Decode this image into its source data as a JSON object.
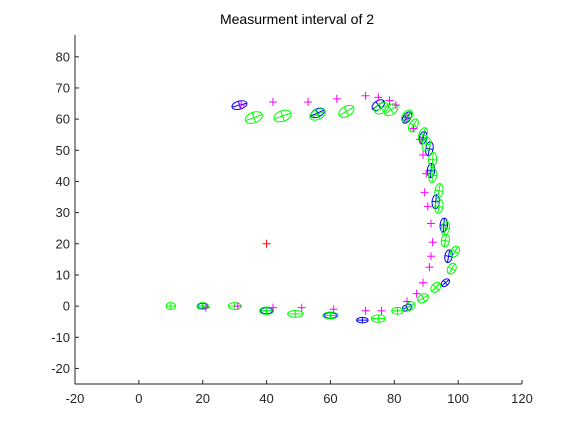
{
  "chart_data": {
    "type": "scatter",
    "title": "Measurment interval of 2",
    "xlabel": "",
    "ylabel": "",
    "xlim": [
      -20,
      120
    ],
    "ylim": [
      -25,
      87
    ],
    "xticks": [
      -20,
      0,
      20,
      40,
      60,
      80,
      100,
      120
    ],
    "yticks": [
      -20,
      -10,
      0,
      10,
      20,
      30,
      40,
      50,
      60,
      70,
      80
    ],
    "grid": false,
    "legend": "none",
    "colors": {
      "axis": "#262626",
      "measurement": "#ff00ff",
      "estimate_ellipse": "#00ff00",
      "true_ellipse": "#0000ff",
      "start_marker": "#ff0000"
    },
    "start_point": {
      "x": 40,
      "y": 20
    },
    "measurements": [
      [
        21,
        -0.5
      ],
      [
        31,
        0
      ],
      [
        42,
        -0.5
      ],
      [
        51,
        -0.5
      ],
      [
        61,
        -1
      ],
      [
        71,
        -1.5
      ],
      [
        76,
        -1.5
      ],
      [
        84,
        1.5
      ],
      [
        87,
        4
      ],
      [
        89,
        7.5
      ],
      [
        91,
        12.5
      ],
      [
        91.5,
        16
      ],
      [
        92,
        20.5
      ],
      [
        91.5,
        26.5
      ],
      [
        90.5,
        32
      ],
      [
        89.5,
        36.5
      ],
      [
        90,
        42.5
      ],
      [
        89,
        48.5
      ],
      [
        88,
        53.5
      ],
      [
        86,
        57
      ],
      [
        84,
        60.5
      ],
      [
        80.5,
        64.5
      ],
      [
        78.5,
        66
      ],
      [
        75,
        67
      ],
      [
        71,
        67.5
      ],
      [
        62,
        66.5
      ],
      [
        53,
        65.5
      ],
      [
        42,
        65.5
      ],
      [
        32,
        64.5
      ]
    ],
    "green_ellipses": [
      {
        "x": 10,
        "y": 0,
        "rx": 1.5,
        "ry": 1.1,
        "angle": 0
      },
      {
        "x": 20,
        "y": 0,
        "rx": 1.8,
        "ry": 1.1,
        "angle": 0
      },
      {
        "x": 30,
        "y": 0,
        "rx": 2.0,
        "ry": 1.1,
        "angle": 0
      },
      {
        "x": 40,
        "y": -1.5,
        "rx": 2.2,
        "ry": 1.2,
        "angle": 0
      },
      {
        "x": 49,
        "y": -2.5,
        "rx": 2.4,
        "ry": 1.1,
        "angle": 0
      },
      {
        "x": 60,
        "y": -3,
        "rx": 2.4,
        "ry": 1.1,
        "angle": 0
      },
      {
        "x": 75,
        "y": -4,
        "rx": 2.2,
        "ry": 1.2,
        "angle": 0
      },
      {
        "x": 81,
        "y": -1.5,
        "rx": 1.8,
        "ry": 1.1,
        "angle": 0
      },
      {
        "x": 85,
        "y": 0,
        "rx": 1.6,
        "ry": 1.3,
        "angle": 30
      },
      {
        "x": 89,
        "y": 2.5,
        "rx": 1.8,
        "ry": 1.3,
        "angle": 30
      },
      {
        "x": 93,
        "y": 6,
        "rx": 1.8,
        "ry": 1.3,
        "angle": 45
      },
      {
        "x": 98,
        "y": 12,
        "rx": 1.8,
        "ry": 1.3,
        "angle": 60
      },
      {
        "x": 99,
        "y": 17.5,
        "rx": 1.8,
        "ry": 1.3,
        "angle": 60
      },
      {
        "x": 96,
        "y": 21,
        "rx": 2.0,
        "ry": 1.3,
        "angle": 80
      },
      {
        "x": 96,
        "y": 25,
        "rx": 2.2,
        "ry": 1.3,
        "angle": 80
      },
      {
        "x": 94,
        "y": 32,
        "rx": 2.2,
        "ry": 1.3,
        "angle": 80
      },
      {
        "x": 94,
        "y": 37,
        "rx": 2.3,
        "ry": 1.3,
        "angle": 80
      },
      {
        "x": 92,
        "y": 42,
        "rx": 2.3,
        "ry": 1.3,
        "angle": 85
      },
      {
        "x": 92,
        "y": 47,
        "rx": 2.3,
        "ry": 1.3,
        "angle": 85
      },
      {
        "x": 90,
        "y": 52,
        "rx": 2.3,
        "ry": 1.3,
        "angle": 80
      },
      {
        "x": 89,
        "y": 55,
        "rx": 2.3,
        "ry": 1.3,
        "angle": 70
      },
      {
        "x": 86,
        "y": 58,
        "rx": 2.2,
        "ry": 1.3,
        "angle": 60
      },
      {
        "x": 84,
        "y": 61,
        "rx": 2.2,
        "ry": 1.4,
        "angle": 50
      },
      {
        "x": 79,
        "y": 63,
        "rx": 2.4,
        "ry": 1.6,
        "angle": 35
      },
      {
        "x": 76,
        "y": 63.5,
        "rx": 2.4,
        "ry": 1.6,
        "angle": 30
      },
      {
        "x": 65,
        "y": 62.5,
        "rx": 2.6,
        "ry": 1.6,
        "angle": 30
      },
      {
        "x": 56,
        "y": 61.5,
        "rx": 2.6,
        "ry": 1.6,
        "angle": 25
      },
      {
        "x": 45,
        "y": 61,
        "rx": 2.8,
        "ry": 1.7,
        "angle": 20
      },
      {
        "x": 36,
        "y": 60.5,
        "rx": 2.8,
        "ry": 1.7,
        "angle": 20
      }
    ],
    "blue_ellipses": [
      {
        "x": 20,
        "y": 0,
        "rx": 1.6,
        "ry": 0.9,
        "angle": 0
      },
      {
        "x": 40,
        "y": -1.5,
        "rx": 1.9,
        "ry": 1.0,
        "angle": 0
      },
      {
        "x": 60,
        "y": -3,
        "rx": 2.0,
        "ry": 0.9,
        "angle": 0
      },
      {
        "x": 70,
        "y": -4.5,
        "rx": 1.8,
        "ry": 0.9,
        "angle": 0
      },
      {
        "x": 84,
        "y": -0.5,
        "rx": 1.6,
        "ry": 1.0,
        "angle": 20
      },
      {
        "x": 96,
        "y": 7.5,
        "rx": 1.5,
        "ry": 1.0,
        "angle": 40
      },
      {
        "x": 97,
        "y": 16,
        "rx": 2.0,
        "ry": 1.2,
        "angle": 80
      },
      {
        "x": 95.5,
        "y": 26,
        "rx": 2.2,
        "ry": 1.2,
        "angle": 85
      },
      {
        "x": 93,
        "y": 33.5,
        "rx": 2.2,
        "ry": 1.2,
        "angle": 85
      },
      {
        "x": 91.5,
        "y": 43.5,
        "rx": 2.2,
        "ry": 1.2,
        "angle": 85
      },
      {
        "x": 91,
        "y": 50.5,
        "rx": 2.2,
        "ry": 1.2,
        "angle": 80
      },
      {
        "x": 89,
        "y": 54,
        "rx": 2.0,
        "ry": 1.2,
        "angle": 75
      },
      {
        "x": 84,
        "y": 60.5,
        "rx": 2.0,
        "ry": 1.2,
        "angle": 55
      },
      {
        "x": 75,
        "y": 64.5,
        "rx": 2.2,
        "ry": 1.4,
        "angle": 35
      },
      {
        "x": 56,
        "y": 62,
        "rx": 2.3,
        "ry": 1.3,
        "angle": 25
      },
      {
        "x": 31.5,
        "y": 64.5,
        "rx": 2.4,
        "ry": 1.3,
        "angle": 15
      }
    ]
  }
}
